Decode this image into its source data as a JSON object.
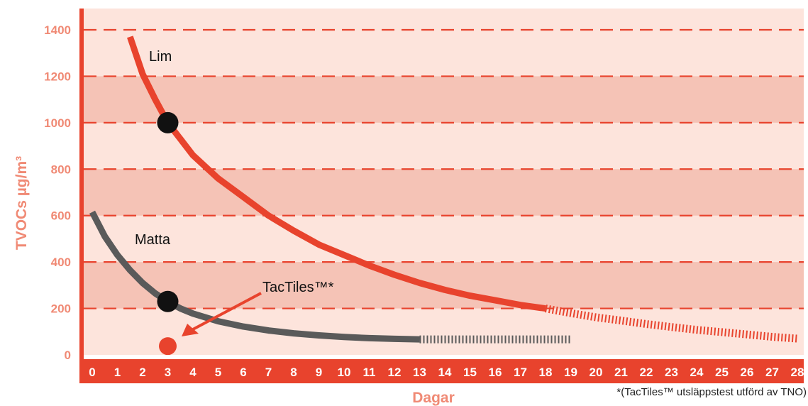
{
  "chart_data": {
    "type": "line",
    "title": "",
    "xlabel": "Dagar",
    "ylabel": "TVOCs µg/m³",
    "xlim": [
      0,
      28
    ],
    "ylim": [
      0,
      1400
    ],
    "x_ticks": [
      "0",
      "1",
      "2",
      "3",
      "4",
      "5",
      "6",
      "7",
      "8",
      "9",
      "10",
      "11",
      "12",
      "13",
      "14",
      "15",
      "16",
      "17",
      "18",
      "19",
      "20",
      "21",
      "22",
      "23",
      "24",
      "25",
      "26",
      "27",
      "28"
    ],
    "y_ticks": [
      "0",
      "200",
      "400",
      "600",
      "800",
      "1000",
      "1200",
      "1400"
    ],
    "grid": true,
    "legend": "none",
    "series": [
      {
        "name": "Lim",
        "x": [
          1.5,
          2,
          2.5,
          3,
          3.5,
          4,
          5,
          6,
          7,
          8,
          9,
          10,
          11,
          12,
          13,
          14,
          15,
          16,
          17,
          18,
          19,
          20,
          21,
          22,
          23,
          24,
          25,
          26,
          27,
          28
        ],
        "y": [
          1370,
          1210,
          1100,
          1000,
          930,
          860,
          760,
          680,
          600,
          535,
          475,
          430,
          385,
          345,
          310,
          280,
          255,
          235,
          215,
          200,
          180,
          162,
          148,
          133,
          120,
          108,
          98,
          88,
          78,
          70
        ],
        "measured_until": 18,
        "color": "#e8432d",
        "marker": {
          "x": 3,
          "y": 1000
        }
      },
      {
        "name": "Matta",
        "x": [
          0,
          0.5,
          1,
          1.5,
          2,
          2.5,
          3,
          3.5,
          4,
          5,
          6,
          7,
          8,
          9,
          10,
          11,
          12,
          13,
          14,
          15,
          16,
          17,
          18,
          19
        ],
        "y": [
          615,
          510,
          430,
          365,
          310,
          265,
          230,
          200,
          178,
          145,
          122,
          105,
          93,
          84,
          77,
          72,
          69,
          67,
          67,
          67,
          67,
          67,
          67,
          67
        ],
        "measured_until": 13,
        "color": "#5a5a5a",
        "marker": {
          "x": 3,
          "y": 230
        }
      },
      {
        "name": "TacTiles™*",
        "x": [
          3
        ],
        "y": [
          50
        ],
        "color": "#e8432d"
      }
    ],
    "annotation": "*(TacTiles™ utsläppstest utförd av TNO)"
  }
}
